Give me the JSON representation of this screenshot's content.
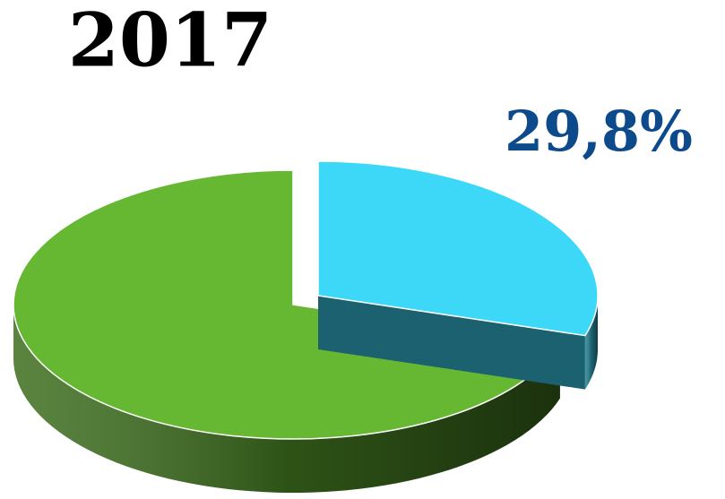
{
  "chart_data": {
    "type": "pie3d",
    "title": "2017",
    "values": [
      29.8,
      70.2
    ],
    "value_labels": [
      "29,8%",
      null
    ],
    "colors": [
      "#3dd8f8",
      "#66b832"
    ],
    "explode": [
      true,
      false
    ]
  }
}
